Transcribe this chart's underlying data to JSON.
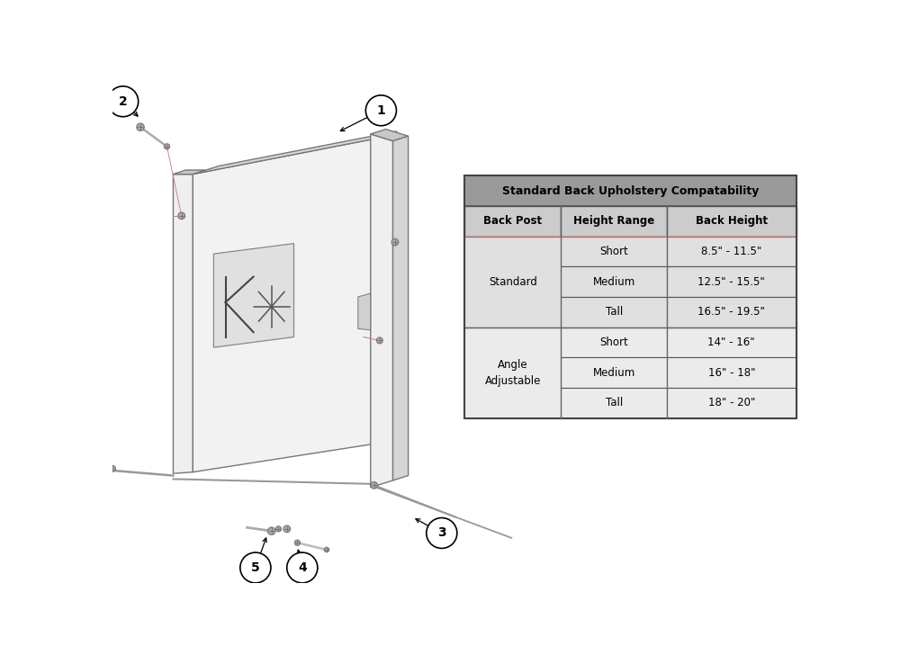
{
  "table_title": "Standard Back Upholstery Compatability",
  "table_headers": [
    "Back Post",
    "Height Range",
    "Back Height"
  ],
  "row_data": [
    [
      "",
      "Short",
      "8.5\" - 11.5\""
    ],
    [
      "",
      "Medium",
      "12.5\" - 15.5\""
    ],
    [
      "Standard",
      "Tall",
      "16.5\" - 19.5\""
    ],
    [
      "",
      "Short",
      "14\" - 16\""
    ],
    [
      "",
      "Medium",
      "16\" - 18\""
    ],
    [
      "Angle\nAdjustable",
      "Tall",
      "18\" - 20\""
    ]
  ],
  "bg_color": "#ffffff",
  "table_title_bg": "#9a9a9a",
  "table_header_bg": "#cccccc",
  "table_row_bg_std": "#e0e0e0",
  "table_row_bg_ang": "#ebebeb",
  "table_border_color": "#555555",
  "table_sep_color": "#cc6666",
  "part_circle_bg": "#ffffff",
  "part_circle_edge": "#000000",
  "panel_face_color": "#f2f2f2",
  "panel_top_color": "#d8d8d8",
  "panel_right_color": "#e8e8e8",
  "panel_edge_color": "#777777",
  "post_face_color": "#efefef",
  "post_side_color": "#d5d5d5",
  "post_top_color": "#c8c8c8",
  "logo_bg": "#e0e0e0",
  "logo_edge": "#888888",
  "screw_color": "#aaaaaa",
  "screw_edge": "#777777",
  "rod_color": "#999999",
  "callout_line_color": "#000000",
  "screw_line_color": "#cc8888"
}
